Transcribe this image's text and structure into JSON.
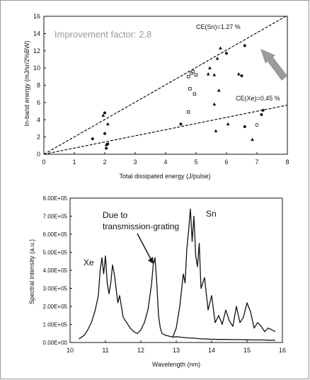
{
  "chart_data": [
    {
      "type": "scatter",
      "title": "",
      "xlabel": "Total dissipated energy (J/pulse)",
      "ylabel": "In-band energy (mJ/sr/2%BW)",
      "xlim": [
        0,
        8
      ],
      "ylim": [
        0,
        16
      ],
      "xticks": [
        "0",
        "1",
        "2",
        "3",
        "4",
        "5",
        "6",
        "7",
        "8"
      ],
      "yticks": [
        "0",
        "2",
        "4",
        "6",
        "8",
        "10",
        "12",
        "14",
        "16"
      ],
      "grid": false,
      "annotations": {
        "improvement": "Improvement factor: 2.8",
        "ce_sn": "CE(Sn)=1.27 %",
        "ce_xe": "CE(Xe)=0.45 %"
      },
      "lines": [
        {
          "label": "CE(Sn)=1.27 %",
          "x": [
            0,
            8
          ],
          "y": [
            0,
            16.1
          ]
        },
        {
          "label": "CE(Xe)=0.45 %",
          "x": [
            0,
            8
          ],
          "y": [
            0,
            5.7
          ]
        }
      ],
      "series": [
        {
          "marker": "circle",
          "points": [
            [
              1.6,
              1.8
            ],
            [
              2.0,
              2.4
            ],
            [
              2.0,
              4.8
            ],
            [
              2.05,
              0.7
            ],
            [
              2.1,
              1.2
            ],
            [
              6.0,
              11.7
            ],
            [
              6.5,
              9.1
            ],
            [
              6.6,
              12.6
            ],
            [
              6.6,
              3.2
            ],
            [
              7.15,
              4.6
            ],
            [
              7.2,
              5.1
            ]
          ]
        },
        {
          "marker": "triangle",
          "points": [
            [
              1.95,
              4.5
            ],
            [
              2.1,
              3.5
            ],
            [
              2.05,
              1.1
            ],
            [
              5.4,
              9.3
            ],
            [
              5.6,
              9.2
            ],
            [
              5.6,
              5.8
            ],
            [
              5.7,
              11.1
            ],
            [
              5.75,
              7.4
            ],
            [
              5.8,
              12.3
            ],
            [
              6.4,
              9.3
            ],
            [
              5.65,
              2.7
            ],
            [
              6.05,
              3.5
            ],
            [
              6.85,
              1.7
            ],
            [
              5.45,
              10.0
            ]
          ]
        },
        {
          "marker": "square-open",
          "points": [
            [
              4.75,
              9.0
            ],
            [
              4.8,
              7.6
            ],
            [
              4.85,
              9.4
            ],
            [
              4.9,
              9.6
            ],
            [
              5.0,
              9.2
            ],
            [
              4.75,
              4.9
            ],
            [
              4.95,
              7.0
            ]
          ]
        },
        {
          "marker": "square",
          "points": [
            [
              4.5,
              3.5
            ]
          ]
        },
        {
          "marker": "circle-open",
          "points": [
            [
              7.0,
              3.4
            ]
          ]
        }
      ]
    },
    {
      "type": "line",
      "title": "",
      "xlabel": "Wavelength (nm)",
      "ylabel": "Spectral intensity (a.u.)",
      "xlim": [
        10,
        16
      ],
      "ylim": [
        0,
        800000
      ],
      "xticks": [
        "10",
        "11",
        "12",
        "13",
        "14",
        "15",
        "16"
      ],
      "yticks": [
        "0.00E+00",
        "1.00E+05",
        "2.00E+05",
        "3.00E+05",
        "4.00E+05",
        "5.00E+05",
        "6.00E+05",
        "7.00E+05",
        "8.00E+05"
      ],
      "annotations": {
        "grating_note_line1": "Due to",
        "grating_note_line2": "transmission-grating"
      },
      "series": [
        {
          "name": "Xe",
          "x": [
            10.25,
            10.4,
            10.5,
            10.6,
            10.7,
            10.8,
            10.85,
            10.9,
            10.95,
            11.0,
            11.05,
            11.1,
            11.15,
            11.2,
            11.25,
            11.3,
            11.35,
            11.4,
            11.5,
            11.6,
            11.7,
            11.8,
            11.9,
            12.0,
            12.1,
            12.2,
            12.3,
            12.35,
            12.4,
            12.45,
            12.5,
            12.55,
            12.6,
            12.7,
            12.8,
            12.9,
            13.0,
            13.1,
            13.2,
            13.3,
            13.4,
            13.5,
            13.6,
            13.7,
            13.8,
            13.9,
            14.0,
            14.2,
            14.4,
            14.6,
            14.8,
            15.0,
            15.2,
            15.4,
            15.6,
            15.8
          ],
          "y": [
            20000,
            40000,
            70000,
            110000,
            170000,
            260000,
            400000,
            470000,
            380000,
            480000,
            330000,
            270000,
            330000,
            430000,
            380000,
            300000,
            220000,
            260000,
            140000,
            110000,
            80000,
            60000,
            50000,
            70000,
            110000,
            180000,
            320000,
            430000,
            470000,
            330000,
            150000,
            80000,
            50000,
            40000,
            35000,
            30000,
            32000,
            30000,
            28000,
            26000,
            25000,
            24000,
            22000,
            20000,
            20000,
            19000,
            18000,
            17000,
            17000,
            16000,
            16000,
            15000,
            14000,
            14000,
            13000,
            12000
          ]
        },
        {
          "name": "Sn",
          "x": [
            12.9,
            13.0,
            13.1,
            13.2,
            13.25,
            13.3,
            13.35,
            13.4,
            13.45,
            13.5,
            13.55,
            13.6,
            13.65,
            13.7,
            13.8,
            13.9,
            14.0,
            14.1,
            14.2,
            14.3,
            14.4,
            14.5,
            14.6,
            14.7,
            14.8,
            14.9,
            15.0,
            15.1,
            15.2,
            15.3,
            15.4,
            15.5,
            15.6,
            15.7,
            15.8
          ],
          "y": [
            30000,
            80000,
            200000,
            380000,
            330000,
            520000,
            620000,
            740000,
            560000,
            700000,
            480000,
            420000,
            550000,
            300000,
            360000,
            180000,
            260000,
            110000,
            150000,
            100000,
            180000,
            120000,
            90000,
            200000,
            110000,
            140000,
            220000,
            170000,
            80000,
            110000,
            90000,
            60000,
            80000,
            70000,
            60000
          ]
        }
      ]
    }
  ]
}
